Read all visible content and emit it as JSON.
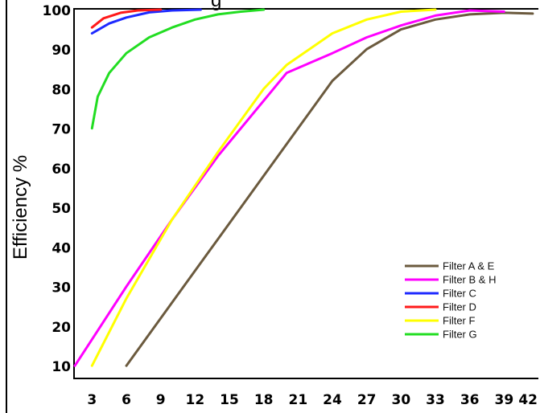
{
  "chart_data": {
    "type": "line",
    "title": "",
    "title_fragment": "g",
    "xlabel": "",
    "ylabel": "Efficiency %",
    "xlim": [
      1.5,
      42
    ],
    "ylim": [
      7,
      100
    ],
    "x_ticks": [
      "3",
      "6",
      "9",
      "12",
      "15",
      "18",
      "21",
      "24",
      "27",
      "30",
      "33",
      "36",
      "39",
      "42"
    ],
    "y_ticks": [
      "10",
      "20",
      "30",
      "40",
      "50",
      "60",
      "70",
      "80",
      "90",
      "100"
    ],
    "grid": false,
    "legend_position": "bottom-right",
    "series": [
      {
        "name": "Filter A & E",
        "color": "#6b5a3e",
        "points": [
          [
            6,
            10
          ],
          [
            10,
            26
          ],
          [
            14,
            42
          ],
          [
            18,
            58
          ],
          [
            22,
            74
          ],
          [
            24,
            82
          ],
          [
            27,
            90
          ],
          [
            30,
            95
          ],
          [
            33,
            97.5
          ],
          [
            36,
            98.8
          ],
          [
            39,
            99.2
          ],
          [
            41.5,
            99
          ]
        ]
      },
      {
        "name": "Filter B & H",
        "color": "#ff00ff",
        "points": [
          [
            1.5,
            10
          ],
          [
            6,
            30
          ],
          [
            10,
            47
          ],
          [
            14,
            63
          ],
          [
            18,
            77
          ],
          [
            20,
            84
          ],
          [
            24,
            89
          ],
          [
            27,
            93
          ],
          [
            30,
            96
          ],
          [
            33,
            98.5
          ],
          [
            36,
            99.8
          ],
          [
            39,
            99.5
          ]
        ]
      },
      {
        "name": "Filter C",
        "color": "#1e2aff",
        "points": [
          [
            3,
            94
          ],
          [
            4.5,
            96.5
          ],
          [
            6,
            98
          ],
          [
            8,
            99.3
          ],
          [
            10,
            99.8
          ],
          [
            12.5,
            100
          ]
        ]
      },
      {
        "name": "Filter D",
        "color": "#ff1a1a",
        "points": [
          [
            3,
            95.5
          ],
          [
            4,
            97.8
          ],
          [
            5.5,
            99.2
          ],
          [
            7,
            99.8
          ],
          [
            9,
            100
          ]
        ]
      },
      {
        "name": "Filter F",
        "color": "#ffff00",
        "points": [
          [
            3,
            10
          ],
          [
            6,
            27
          ],
          [
            10,
            47
          ],
          [
            14,
            64
          ],
          [
            18,
            80
          ],
          [
            20,
            86
          ],
          [
            24,
            94
          ],
          [
            27,
            97.5
          ],
          [
            30,
            99.5
          ],
          [
            33,
            100
          ]
        ]
      },
      {
        "name": "Filter G",
        "color": "#22dd22",
        "points": [
          [
            3,
            70
          ],
          [
            3.5,
            78
          ],
          [
            4.5,
            84
          ],
          [
            6,
            89
          ],
          [
            8,
            93
          ],
          [
            10,
            95.5
          ],
          [
            12,
            97.5
          ],
          [
            14,
            98.8
          ],
          [
            16,
            99.5
          ],
          [
            18,
            100
          ]
        ]
      }
    ]
  }
}
